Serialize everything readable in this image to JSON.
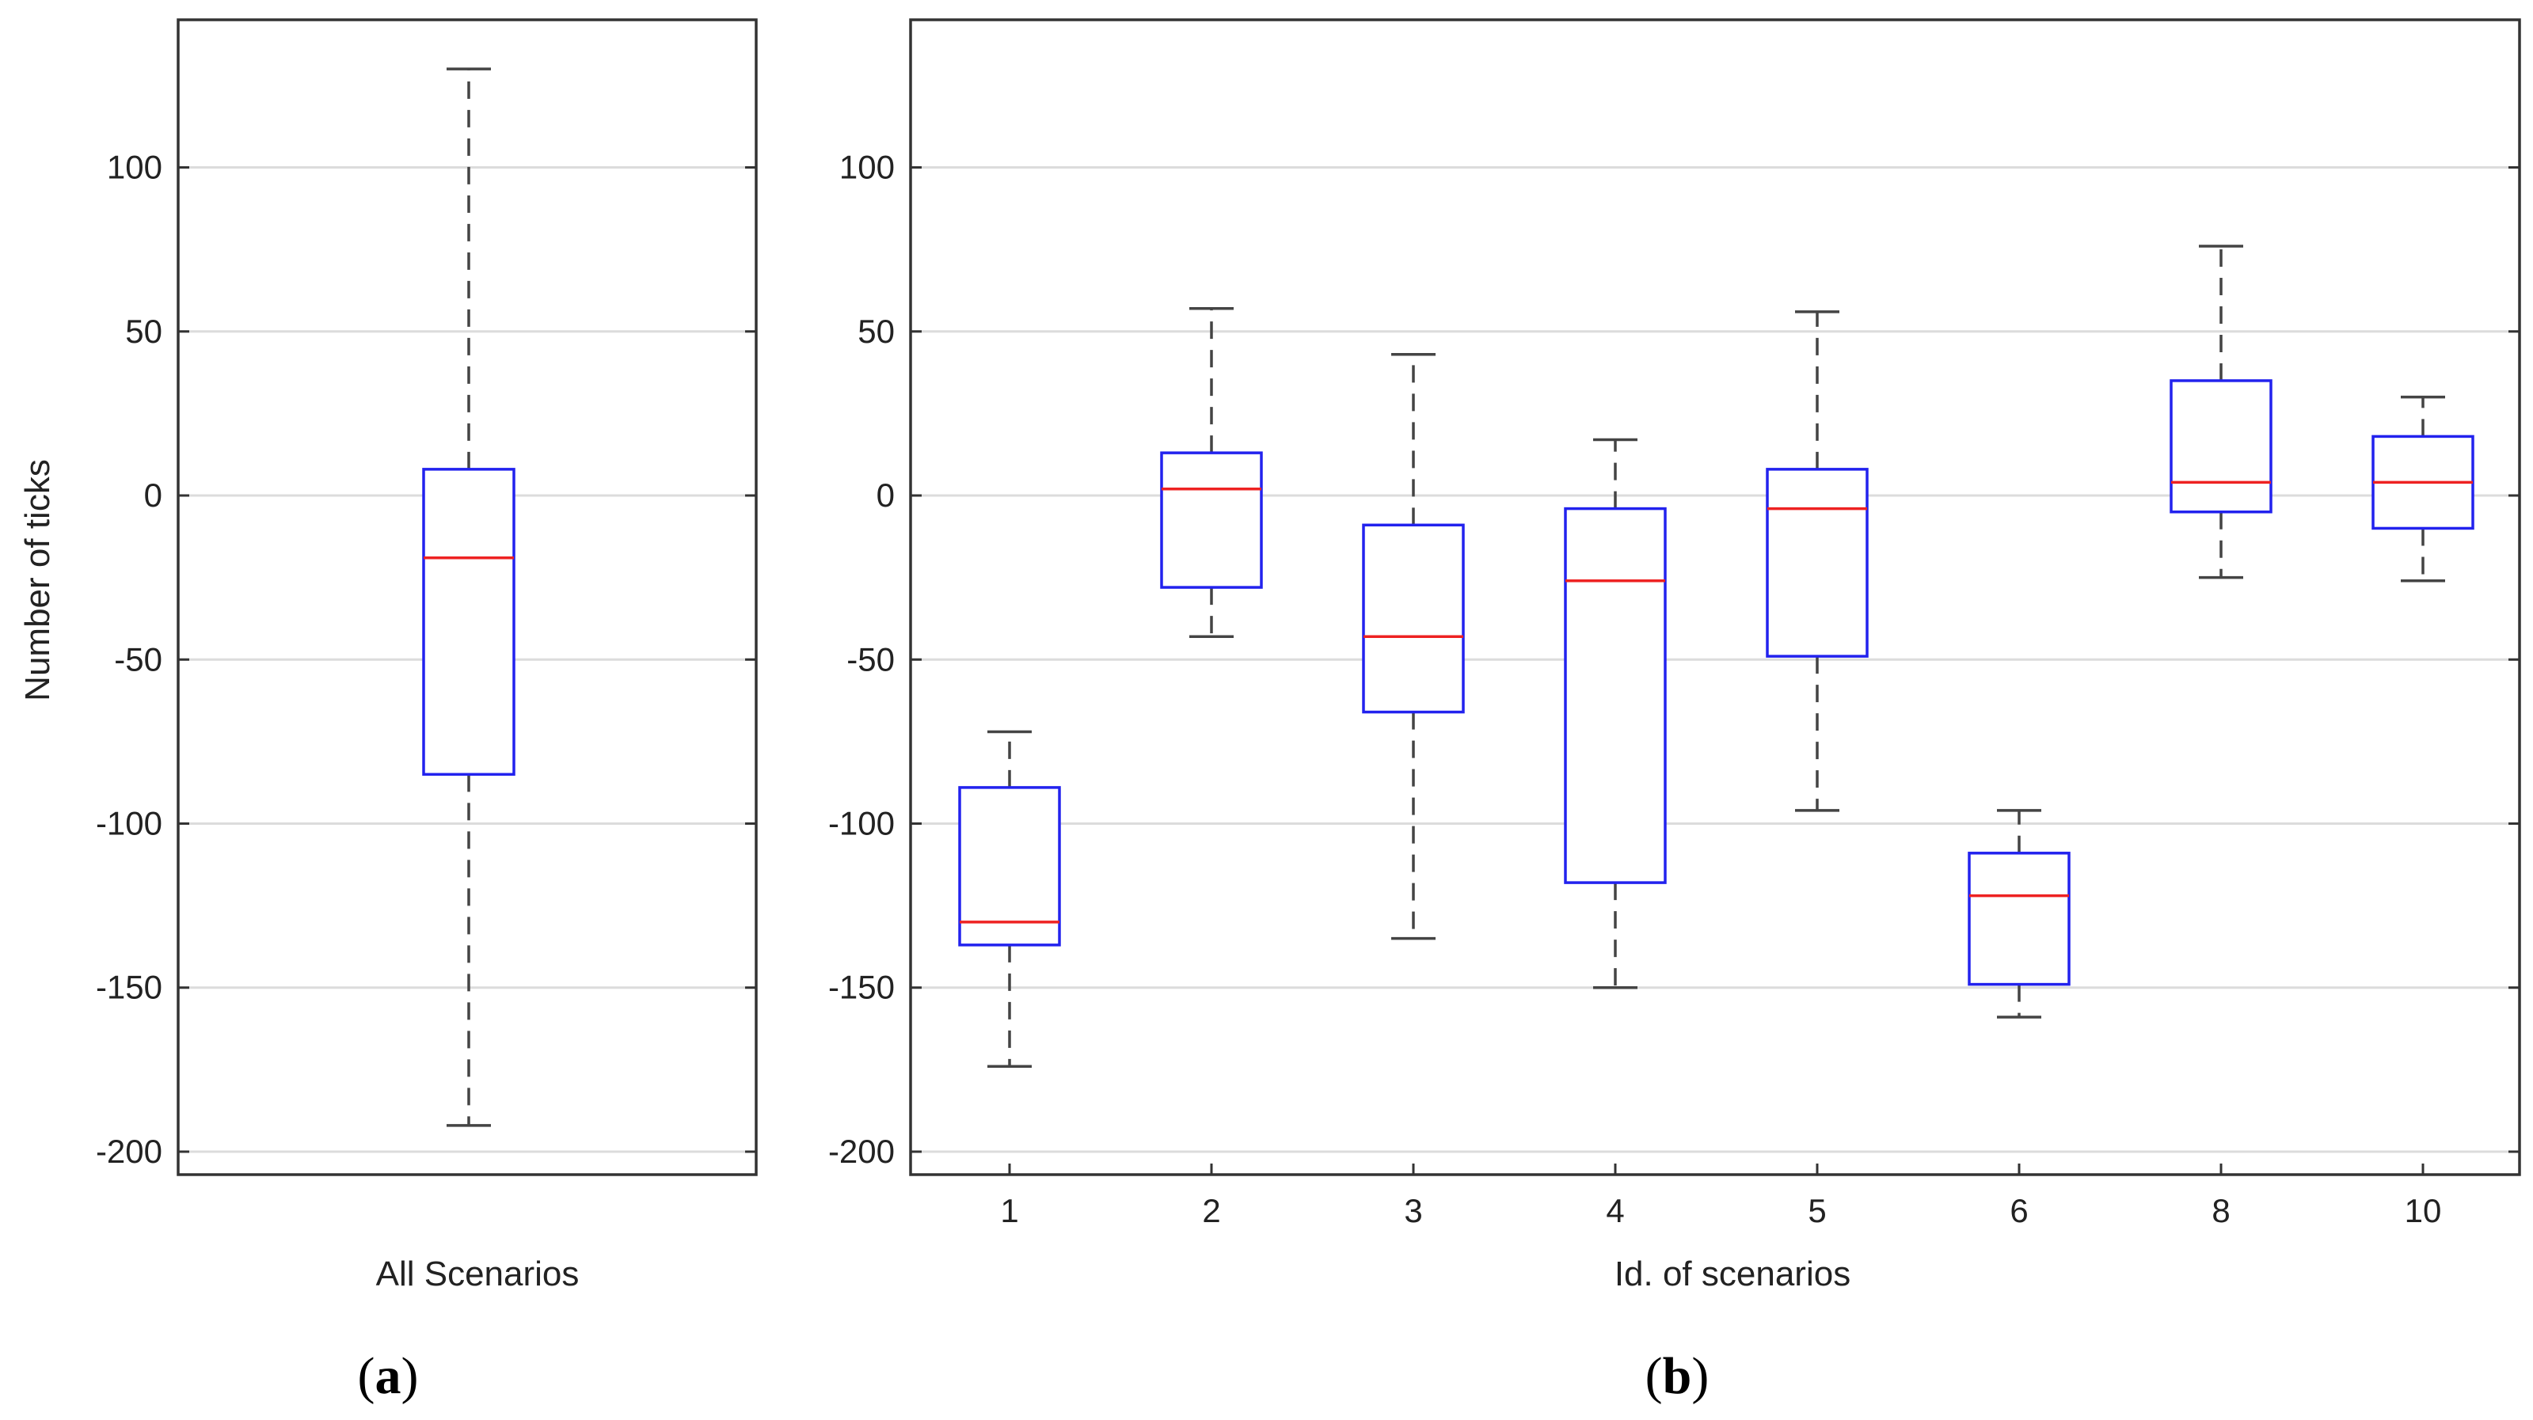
{
  "chart_data": [
    {
      "type": "box",
      "panel_label": "(a)",
      "panel_letter": "a",
      "xlabel": "All Scenarios",
      "ylabel": "Number of ticks",
      "ylim": [
        -207,
        145
      ],
      "yticks": [
        100,
        50,
        0,
        -50,
        -100,
        -150,
        -200
      ],
      "grid": true,
      "boxes": [
        {
          "label": "",
          "whisker_low": -192,
          "q1": -85,
          "median": -19,
          "q3": 8,
          "whisker_high": 130
        }
      ]
    },
    {
      "type": "box",
      "panel_label": "(b)",
      "panel_letter": "b",
      "xlabel": "Id. of scenarios",
      "ylabel": "",
      "ylim": [
        -207,
        145
      ],
      "yticks": [
        100,
        50,
        0,
        -50,
        -100,
        -150,
        -200
      ],
      "grid": true,
      "boxes": [
        {
          "label": "1",
          "whisker_low": -174,
          "q1": -137,
          "median": -130,
          "q3": -89,
          "whisker_high": -72
        },
        {
          "label": "2",
          "whisker_low": -43,
          "q1": -28,
          "median": 2,
          "q3": 13,
          "whisker_high": 57
        },
        {
          "label": "3",
          "whisker_low": -135,
          "q1": -66,
          "median": -43,
          "q3": -9,
          "whisker_high": 43
        },
        {
          "label": "4",
          "whisker_low": -150,
          "q1": -118,
          "median": -26,
          "q3": -4,
          "whisker_high": 17
        },
        {
          "label": "5",
          "whisker_low": -96,
          "q1": -49,
          "median": -4,
          "q3": 8,
          "whisker_high": 56
        },
        {
          "label": "6",
          "whisker_low": -159,
          "q1": -149,
          "median": -122,
          "q3": -109,
          "whisker_high": -96
        },
        {
          "label": "8",
          "whisker_low": -25,
          "q1": -5,
          "median": 4,
          "q3": 35,
          "whisker_high": 76
        },
        {
          "label": "10",
          "whisker_low": -26,
          "q1": -10,
          "median": 4,
          "q3": 18,
          "whisker_high": 30
        }
      ]
    }
  ],
  "colors": {
    "box": "#2222ee",
    "median": "#ee2222",
    "whisker": "#444444",
    "grid": "#dcdcdc",
    "axis": "#333333"
  }
}
